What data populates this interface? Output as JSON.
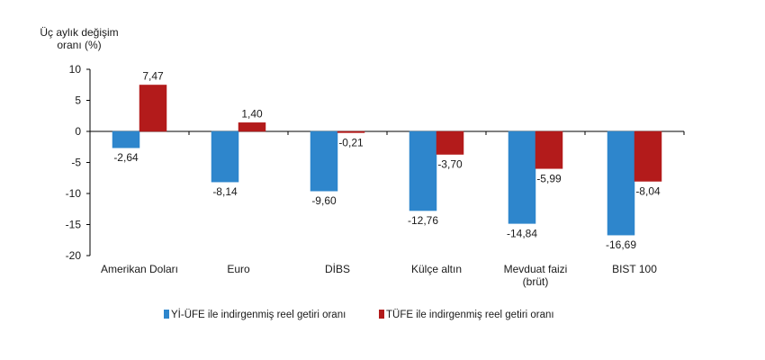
{
  "chart_data": {
    "type": "bar",
    "ylabel": [
      "Üç aylık değişim",
      "oranı (%)"
    ],
    "ylim": [
      -20,
      10
    ],
    "yticks": [
      10,
      5,
      0,
      -5,
      -10,
      -15,
      -20
    ],
    "categories": [
      [
        "Amerikan Doları"
      ],
      [
        "Euro"
      ],
      [
        "DİBS"
      ],
      [
        "Külçe altın"
      ],
      [
        "Mevduat faizi",
        "(brüt)"
      ],
      [
        "BIST 100"
      ]
    ],
    "series": [
      {
        "name": "Yİ-ÜFE ile indirgenmiş reel getiri oranı",
        "color": "#2e86cc",
        "values": [
          -2.64,
          -8.14,
          -9.6,
          -12.76,
          -14.84,
          -16.69
        ],
        "labels": [
          "-2,64",
          "-8,14",
          "-9,60",
          "-12,76",
          "-14,84",
          "-16,69"
        ]
      },
      {
        "name": "TÜFE ile indirgenmiş reel getiri oranı",
        "color": "#b31b1b",
        "values": [
          7.47,
          1.4,
          -0.21,
          -3.7,
          -5.99,
          -8.04
        ],
        "labels": [
          "7,47",
          "1,40",
          "-0,21",
          "-3,70",
          "-5,99",
          "-8,04"
        ]
      }
    ],
    "grid": false,
    "legend": "bottom"
  }
}
